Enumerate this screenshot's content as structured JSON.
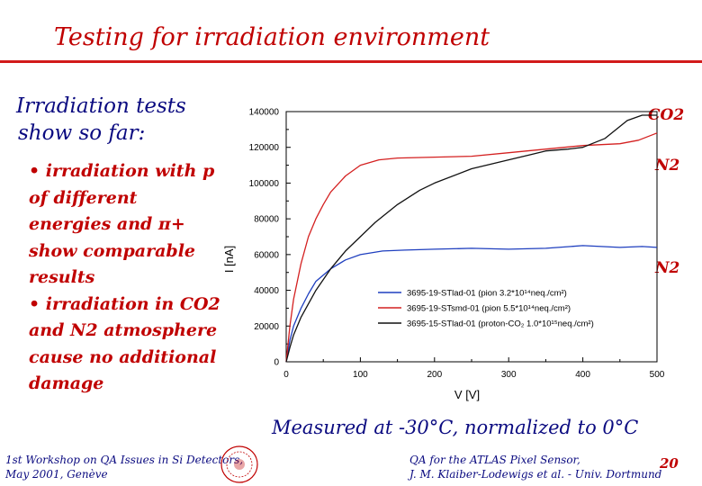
{
  "slide": {
    "title": "Testing for irradiation environment",
    "lead_line1": "Irradiation tests",
    "lead_line2": "show so far:",
    "bullets": [
      "• irradiation with p of different energies and π+ show comparable results",
      "• irradiation in CO2 and N2 atmosphere cause no additional damage"
    ],
    "annotation_co2": "CO2",
    "annotation_n2_top": "N2",
    "annotation_n2_bottom": "N2",
    "caption": "Measured at -30°C, normalized to 0°C",
    "footer_left_line1": "1st Workshop on QA Issues in Si Detectors,",
    "footer_left_line2": "May 2001, Genève",
    "footer_right_line1": "QA for the ATLAS Pixel Sensor,",
    "footer_right_line2": "J. M. Klaiber-Lodewigs et al. - Univ. Dortmund",
    "page_number": "20"
  },
  "colors": {
    "title": "#c00000",
    "rule": "#d21a1a",
    "text_blue": "#0a0a80"
  },
  "chart_data": {
    "type": "line",
    "xlabel": "V [V]",
    "ylabel": "I [nA]",
    "xlim": [
      0,
      500
    ],
    "ylim": [
      0,
      140000
    ],
    "xticks": [
      "0",
      "100",
      "200",
      "300",
      "400",
      "500"
    ],
    "yticks": [
      "0",
      "20000",
      "40000",
      "60000",
      "80000",
      "100000",
      "120000",
      "140000"
    ],
    "grid": false,
    "legend_position": "bottom-right",
    "series": [
      {
        "name": "3695-19-STlad-01 (pion 3.2*10¹⁴neq./cm²)",
        "color": "#1f3fbf",
        "x": [
          0,
          5,
          10,
          20,
          30,
          40,
          60,
          80,
          100,
          130,
          160,
          200,
          250,
          300,
          350,
          400,
          450,
          480,
          500
        ],
        "y": [
          0,
          12000,
          20000,
          30000,
          38000,
          45000,
          52000,
          57000,
          60000,
          62000,
          62500,
          63000,
          63500,
          63000,
          63500,
          65000,
          64000,
          64500,
          64000
        ]
      },
      {
        "name": "3695-19-STsmd-01 (pion 5.5*10¹⁴neq./cm²)",
        "color": "#d42020",
        "x": [
          0,
          5,
          10,
          20,
          30,
          40,
          50,
          60,
          80,
          100,
          125,
          150,
          200,
          250,
          300,
          350,
          400,
          450,
          475,
          500
        ],
        "y": [
          0,
          20000,
          35000,
          55000,
          70000,
          80000,
          88000,
          95000,
          104000,
          110000,
          113000,
          114000,
          114500,
          115000,
          117000,
          119000,
          121000,
          122000,
          124000,
          128000
        ]
      },
      {
        "name": "3695-15-STlad-01 (proton-CO₂ 1.0*10¹⁵neq./cm²)",
        "color": "#111111",
        "x": [
          0,
          5,
          10,
          20,
          40,
          60,
          80,
          100,
          120,
          150,
          180,
          200,
          250,
          300,
          330,
          350,
          380,
          400,
          430,
          460,
          480,
          500
        ],
        "y": [
          0,
          8000,
          15000,
          25000,
          40000,
          52000,
          62000,
          70000,
          78000,
          88000,
          96000,
          100000,
          108000,
          113000,
          116000,
          118000,
          119000,
          120000,
          125000,
          135000,
          138000,
          138000
        ]
      }
    ]
  }
}
